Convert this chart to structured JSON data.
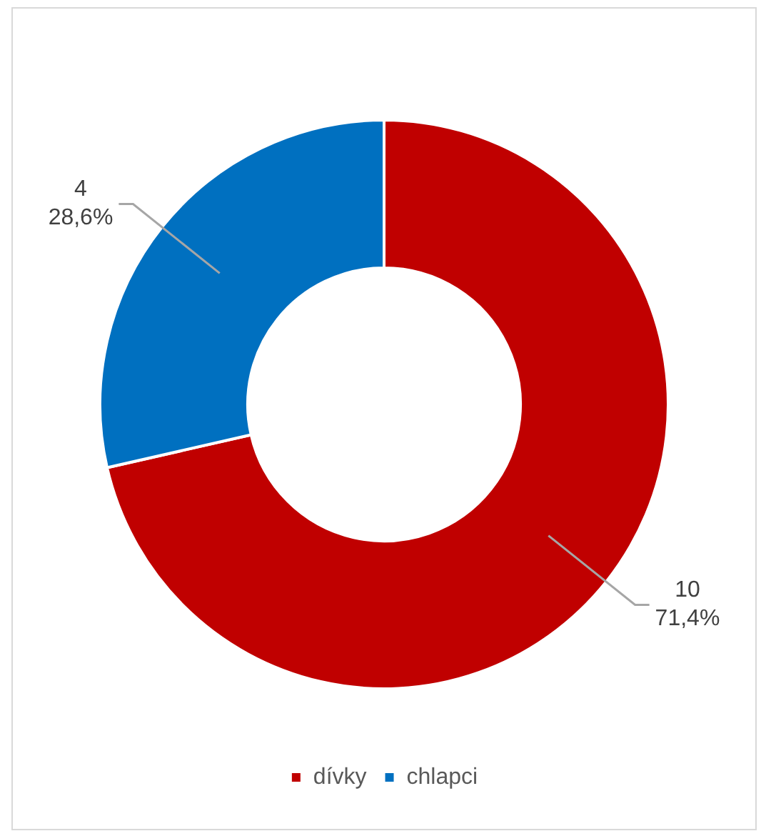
{
  "chart_data": {
    "type": "donut",
    "categories": [
      "dívky",
      "chlapci"
    ],
    "values": [
      10,
      4
    ],
    "colors": [
      "#c00000",
      "#0070c0"
    ],
    "value_labels": [
      "10\n71,4%",
      "4\n28,6%"
    ],
    "legend": "bottom"
  }
}
